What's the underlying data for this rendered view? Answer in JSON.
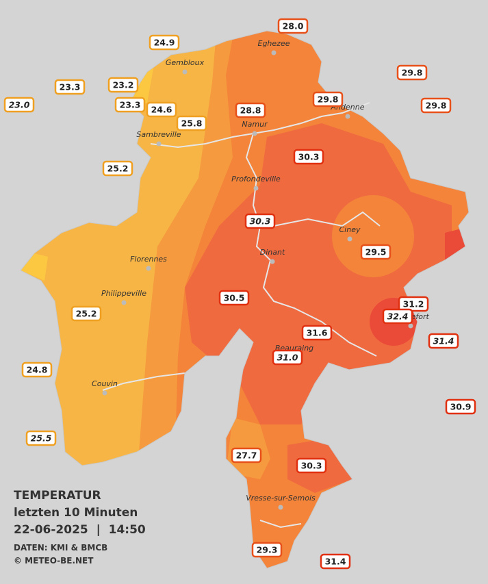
{
  "title": "TEMPERATUR",
  "subtitle": "letzten 10 Minuten",
  "datetime": "22-06-2025  |  14:50",
  "source": "DATEN: KMI & BMCB",
  "credit": "© METEO-BE.NET",
  "cities": [
    "Eghezee",
    "Gembloux",
    "Andenne",
    "Namur",
    "Sambreville",
    "Profondeville",
    "Ciney",
    "Dinant",
    "Florennes",
    "Philippeville",
    "Beauraing",
    "Rochefort",
    "Couvin",
    "Vresse-sur-Semois"
  ],
  "stations": [
    {
      "label": "28.0",
      "color": "#e8501a"
    },
    {
      "label": "24.9",
      "color": "#f0a020"
    },
    {
      "label": "29.8",
      "color": "#e8501a"
    },
    {
      "label": "23.3",
      "color": "#f0a020"
    },
    {
      "label": "23.2",
      "color": "#f0a020"
    },
    {
      "label": "29.8",
      "color": "#e8501a"
    },
    {
      "label": "23.0",
      "color": "#f0a020",
      "italic": true
    },
    {
      "label": "23.3",
      "color": "#f0a020"
    },
    {
      "label": "24.6",
      "color": "#f0a020"
    },
    {
      "label": "28.8",
      "color": "#e8501a"
    },
    {
      "label": "29.8",
      "color": "#e8501a"
    },
    {
      "label": "25.8",
      "color": "#f0a020"
    },
    {
      "label": "30.3",
      "color": "#e03010"
    },
    {
      "label": "25.2",
      "color": "#f0a020"
    },
    {
      "label": "30.3",
      "color": "#e03010",
      "italic": true
    },
    {
      "label": "29.5",
      "color": "#e8501a"
    },
    {
      "label": "30.5",
      "color": "#e03010"
    },
    {
      "label": "31.2",
      "color": "#e03010"
    },
    {
      "label": "32.4",
      "color": "#e03010",
      "italic": true
    },
    {
      "label": "25.2",
      "color": "#f0a020"
    },
    {
      "label": "31.6",
      "color": "#e03010"
    },
    {
      "label": "31.4",
      "color": "#e03010",
      "italic": true
    },
    {
      "label": "31.0",
      "color": "#e03010",
      "italic": true
    },
    {
      "label": "24.8",
      "color": "#f0a020"
    },
    {
      "label": "30.9",
      "color": "#e03010"
    },
    {
      "label": "25.5",
      "color": "#f0a020",
      "italic": true
    },
    {
      "label": "27.7",
      "color": "#e8501a"
    },
    {
      "label": "30.3",
      "color": "#e03010"
    },
    {
      "label": "29.3",
      "color": "#e8501a"
    },
    {
      "label": "31.4",
      "color": "#e03010"
    }
  ]
}
